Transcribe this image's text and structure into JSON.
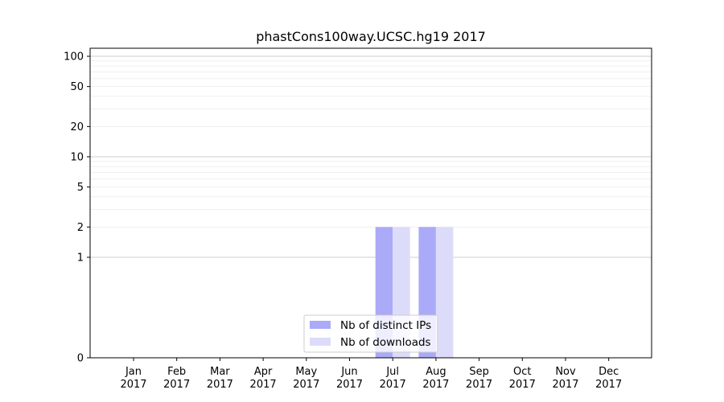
{
  "chart_data": {
    "type": "bar",
    "title": "phastCons100way.UCSC.hg19 2017",
    "xlabel": "",
    "ylabel": "",
    "y_scale": "symlog",
    "y_ticks": [
      0,
      1,
      2,
      5,
      10,
      20,
      50,
      100
    ],
    "y_tick_labels": [
      "0",
      "1",
      "2",
      "5",
      "10",
      "20",
      "50",
      "100"
    ],
    "categories": [
      "Jan\n2017",
      "Feb\n2017",
      "Mar\n2017",
      "Apr\n2017",
      "May\n2017",
      "Jun\n2017",
      "Jul\n2017",
      "Aug\n2017",
      "Sep\n2017",
      "Oct\n2017",
      "Nov\n2017",
      "Dec\n2017"
    ],
    "series": [
      {
        "name": "Nb of distinct IPs",
        "color": "#aaaaf8",
        "values": [
          0,
          0,
          0,
          0,
          0,
          0,
          2,
          2,
          0,
          0,
          0,
          0
        ]
      },
      {
        "name": "Nb of downloads",
        "color": "#dcdcfa",
        "values": [
          0,
          0,
          0,
          0,
          0,
          0,
          2,
          2,
          0,
          0,
          0,
          0
        ]
      }
    ],
    "grid": true,
    "legend": "bottom-center"
  }
}
